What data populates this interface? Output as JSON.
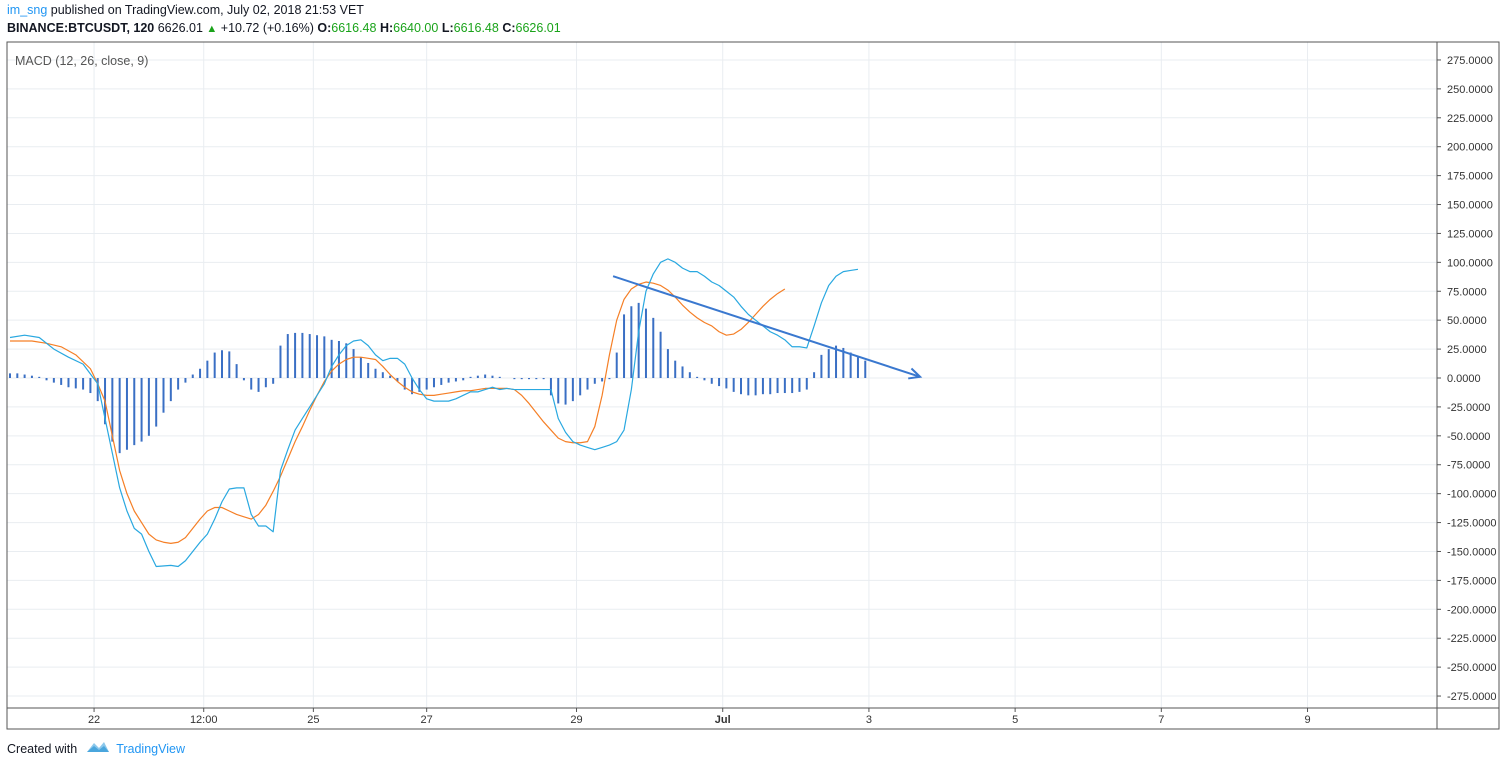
{
  "header": {
    "user": "im_sng",
    "published": "published on TradingView.com, July 02, 2018 21:53 VET",
    "symbol": "BINANCE:BTCUSDT, 120",
    "last": "6626.01",
    "change": "+10.72 (+0.16%)",
    "open_label": "O:",
    "open": "6616.48",
    "high_label": "H:",
    "high": "6640.00",
    "low_label": "L:",
    "low": "6616.48",
    "close_label": "C:",
    "close": "6626.01"
  },
  "footer": {
    "created": "Created with",
    "brand": "TradingView"
  },
  "colors": {
    "macd": "#29a8e0",
    "signal": "#f57f26",
    "histogram": "#3a6fc4",
    "arrow": "#3a78cf",
    "grid": "#e9edf1",
    "green": "#1aa31a"
  },
  "chart_data": {
    "type": "line",
    "title": "MACD (12, 26, close, 9)",
    "ylim": [
      -285,
      285
    ],
    "y_ticks": [
      275,
      250,
      225,
      200,
      175,
      150,
      125,
      100,
      75,
      50,
      25,
      0,
      -25,
      -50,
      -75,
      -100,
      -125,
      -150,
      -175,
      -200,
      -225,
      -250,
      -275
    ],
    "y_tick_labels": [
      "275.0000",
      "250.0000",
      "225.0000",
      "200.0000",
      "175.0000",
      "150.0000",
      "125.0000",
      "100.0000",
      "75.0000",
      "50.0000",
      "25.0000",
      "0.0000",
      "-25.0000",
      "-50.0000",
      "-75.0000",
      "-100.0000",
      "-125.0000",
      "-150.0000",
      "-175.0000",
      "-200.0000",
      "-225.0000",
      "-250.0000",
      "-275.0000"
    ],
    "x_tick_labels": [
      {
        "label": "22",
        "t": 11.5
      },
      {
        "label": "12:00",
        "t": 26.5
      },
      {
        "label": "25",
        "t": 41.5
      },
      {
        "label": "27",
        "t": 57
      },
      {
        "label": "29",
        "t": 77.5
      },
      {
        "label": "Jul",
        "t": 97.5,
        "bold": true
      },
      {
        "label": "3",
        "t": 117.5
      },
      {
        "label": "5",
        "t": 137.5
      },
      {
        "label": "7",
        "t": 157.5
      },
      {
        "label": "9",
        "t": 177.5
      }
    ],
    "series": [
      {
        "role": "macd",
        "points": [
          [
            0,
            35
          ],
          [
            2,
            37
          ],
          [
            4,
            35
          ],
          [
            6,
            25
          ],
          [
            8,
            18
          ],
          [
            10,
            12
          ],
          [
            12,
            -5
          ],
          [
            13,
            -35
          ],
          [
            14,
            -65
          ],
          [
            15,
            -95
          ],
          [
            16,
            -115
          ],
          [
            17,
            -130
          ],
          [
            18,
            -135
          ],
          [
            19,
            -150
          ],
          [
            20,
            -163
          ],
          [
            22,
            -162
          ],
          [
            23,
            -163
          ],
          [
            24,
            -158
          ],
          [
            25,
            -150
          ],
          [
            26,
            -142
          ],
          [
            27,
            -135
          ],
          [
            28,
            -122
          ],
          [
            29,
            -107
          ],
          [
            30,
            -96
          ],
          [
            31,
            -95
          ],
          [
            32,
            -95
          ],
          [
            33,
            -118
          ],
          [
            34,
            -128
          ],
          [
            35,
            -128
          ],
          [
            36,
            -133
          ],
          [
            37,
            -80
          ],
          [
            38,
            -62
          ],
          [
            39,
            -45
          ],
          [
            40,
            -35
          ],
          [
            41,
            -25
          ],
          [
            42,
            -15
          ],
          [
            43,
            -5
          ],
          [
            44,
            10
          ],
          [
            45,
            20
          ],
          [
            46,
            28
          ],
          [
            47,
            32
          ],
          [
            48,
            33
          ],
          [
            49,
            28
          ],
          [
            50,
            20
          ],
          [
            51,
            15
          ],
          [
            52,
            17
          ],
          [
            53,
            17
          ],
          [
            54,
            12
          ],
          [
            55,
            0
          ],
          [
            56,
            -10
          ],
          [
            57,
            -18
          ],
          [
            58,
            -20
          ],
          [
            59,
            -20
          ],
          [
            60,
            -20
          ],
          [
            61,
            -18
          ],
          [
            62,
            -15
          ],
          [
            63,
            -12
          ],
          [
            64,
            -12
          ],
          [
            65,
            -10
          ],
          [
            66,
            -8
          ],
          [
            67,
            -10
          ],
          [
            68,
            -9
          ],
          [
            69,
            -10
          ],
          [
            70,
            -10
          ],
          [
            71,
            -10
          ],
          [
            72,
            -10
          ],
          [
            73,
            -10
          ],
          [
            74,
            -10
          ],
          [
            75,
            -35
          ],
          [
            76,
            -47
          ],
          [
            77,
            -55
          ],
          [
            78,
            -58
          ],
          [
            79,
            -60
          ],
          [
            80,
            -62
          ],
          [
            81,
            -60
          ],
          [
            82,
            -58
          ],
          [
            83,
            -55
          ],
          [
            84,
            -45
          ],
          [
            85,
            -10
          ],
          [
            86,
            40
          ],
          [
            87,
            75
          ],
          [
            88,
            90
          ],
          [
            89,
            100
          ],
          [
            90,
            103
          ],
          [
            91,
            100
          ],
          [
            92,
            95
          ],
          [
            93,
            92
          ],
          [
            94,
            92
          ],
          [
            95,
            88
          ],
          [
            96,
            83
          ],
          [
            97,
            80
          ],
          [
            98,
            75
          ],
          [
            99,
            70
          ],
          [
            100,
            62
          ],
          [
            101,
            55
          ],
          [
            102,
            50
          ],
          [
            103,
            45
          ],
          [
            104,
            40
          ],
          [
            105,
            37
          ],
          [
            106,
            33
          ],
          [
            107,
            27
          ],
          [
            108,
            27
          ],
          [
            109,
            26
          ],
          [
            110,
            45
          ],
          [
            111,
            65
          ],
          [
            112,
            80
          ],
          [
            113,
            88
          ],
          [
            114,
            92
          ],
          [
            115,
            93
          ],
          [
            116,
            94
          ]
        ]
      },
      {
        "role": "signal",
        "points": [
          [
            0,
            32
          ],
          [
            3,
            32
          ],
          [
            5,
            30
          ],
          [
            7,
            27
          ],
          [
            9,
            20
          ],
          [
            11,
            8
          ],
          [
            12,
            -5
          ],
          [
            13,
            -20
          ],
          [
            14,
            -50
          ],
          [
            15,
            -80
          ],
          [
            16,
            -100
          ],
          [
            17,
            -115
          ],
          [
            18,
            -125
          ],
          [
            19,
            -135
          ],
          [
            20,
            -140
          ],
          [
            21,
            -142
          ],
          [
            22,
            -143
          ],
          [
            23,
            -142
          ],
          [
            24,
            -138
          ],
          [
            25,
            -130
          ],
          [
            26,
            -122
          ],
          [
            27,
            -115
          ],
          [
            28,
            -112
          ],
          [
            29,
            -112
          ],
          [
            30,
            -115
          ],
          [
            31,
            -118
          ],
          [
            32,
            -120
          ],
          [
            33,
            -122
          ],
          [
            34,
            -118
          ],
          [
            35,
            -110
          ],
          [
            36,
            -98
          ],
          [
            37,
            -85
          ],
          [
            38,
            -70
          ],
          [
            39,
            -55
          ],
          [
            40,
            -42
          ],
          [
            41,
            -28
          ],
          [
            42,
            -15
          ],
          [
            43,
            -3
          ],
          [
            44,
            6
          ],
          [
            45,
            12
          ],
          [
            46,
            16
          ],
          [
            47,
            18
          ],
          [
            48,
            18
          ],
          [
            49,
            17
          ],
          [
            50,
            16
          ],
          [
            51,
            10
          ],
          [
            52,
            3
          ],
          [
            53,
            -3
          ],
          [
            54,
            -8
          ],
          [
            55,
            -12
          ],
          [
            56,
            -14
          ],
          [
            57,
            -15
          ],
          [
            58,
            -15
          ],
          [
            59,
            -14
          ],
          [
            60,
            -13
          ],
          [
            61,
            -12
          ],
          [
            62,
            -11
          ],
          [
            63,
            -11
          ],
          [
            64,
            -10
          ],
          [
            65,
            -9
          ],
          [
            66,
            -9
          ],
          [
            67,
            -9
          ],
          [
            68,
            -9
          ],
          [
            69,
            -10
          ],
          [
            70,
            -15
          ],
          [
            71,
            -22
          ],
          [
            72,
            -30
          ],
          [
            73,
            -38
          ],
          [
            74,
            -45
          ],
          [
            75,
            -52
          ],
          [
            76,
            -55
          ],
          [
            77,
            -56
          ],
          [
            78,
            -56
          ],
          [
            79,
            -55
          ],
          [
            80,
            -42
          ],
          [
            81,
            -15
          ],
          [
            82,
            20
          ],
          [
            83,
            50
          ],
          [
            84,
            68
          ],
          [
            85,
            77
          ],
          [
            86,
            81
          ],
          [
            87,
            83
          ],
          [
            88,
            82
          ],
          [
            89,
            80
          ],
          [
            90,
            76
          ],
          [
            91,
            70
          ],
          [
            92,
            63
          ],
          [
            93,
            57
          ],
          [
            94,
            52
          ],
          [
            95,
            48
          ],
          [
            96,
            45
          ],
          [
            97,
            40
          ],
          [
            98,
            37
          ],
          [
            99,
            38
          ],
          [
            100,
            42
          ],
          [
            101,
            48
          ],
          [
            102,
            55
          ],
          [
            103,
            62
          ],
          [
            104,
            68
          ],
          [
            105,
            73
          ],
          [
            106,
            77
          ]
        ]
      },
      {
        "role": "histogram",
        "values": [
          4,
          4,
          3,
          2,
          1,
          -2,
          -4,
          -6,
          -8,
          -9,
          -10,
          -13,
          -20,
          -40,
          -55,
          -65,
          -62,
          -58,
          -55,
          -50,
          -42,
          -30,
          -20,
          -10,
          -4,
          3,
          8,
          15,
          22,
          24,
          23,
          12,
          -2,
          -10,
          -12,
          -8,
          -5,
          28,
          38,
          39,
          39,
          38,
          37,
          36,
          33,
          32,
          30,
          25,
          18,
          13,
          8,
          5,
          2,
          -3,
          -10,
          -14,
          -12,
          -10,
          -8,
          -6,
          -4,
          -3,
          -2,
          1,
          2,
          3,
          2,
          1,
          0,
          -1,
          -1,
          -1,
          -1,
          -1,
          -15,
          -22,
          -23,
          -20,
          -15,
          -10,
          -5,
          -3,
          -1,
          22,
          55,
          62,
          65,
          60,
          52,
          40,
          25,
          15,
          10,
          5,
          1,
          -2,
          -5,
          -7,
          -9,
          -12,
          -14,
          -15,
          -15,
          -14,
          -14,
          -13,
          -13,
          -13,
          -12,
          -10,
          5,
          20,
          25,
          28,
          26,
          22,
          18,
          15
        ]
      },
      {
        "role": "trendline",
        "points": [
          [
            82.5,
            88
          ],
          [
            124.5,
            1
          ]
        ]
      }
    ],
    "xlabel": "",
    "ylabel": ""
  }
}
